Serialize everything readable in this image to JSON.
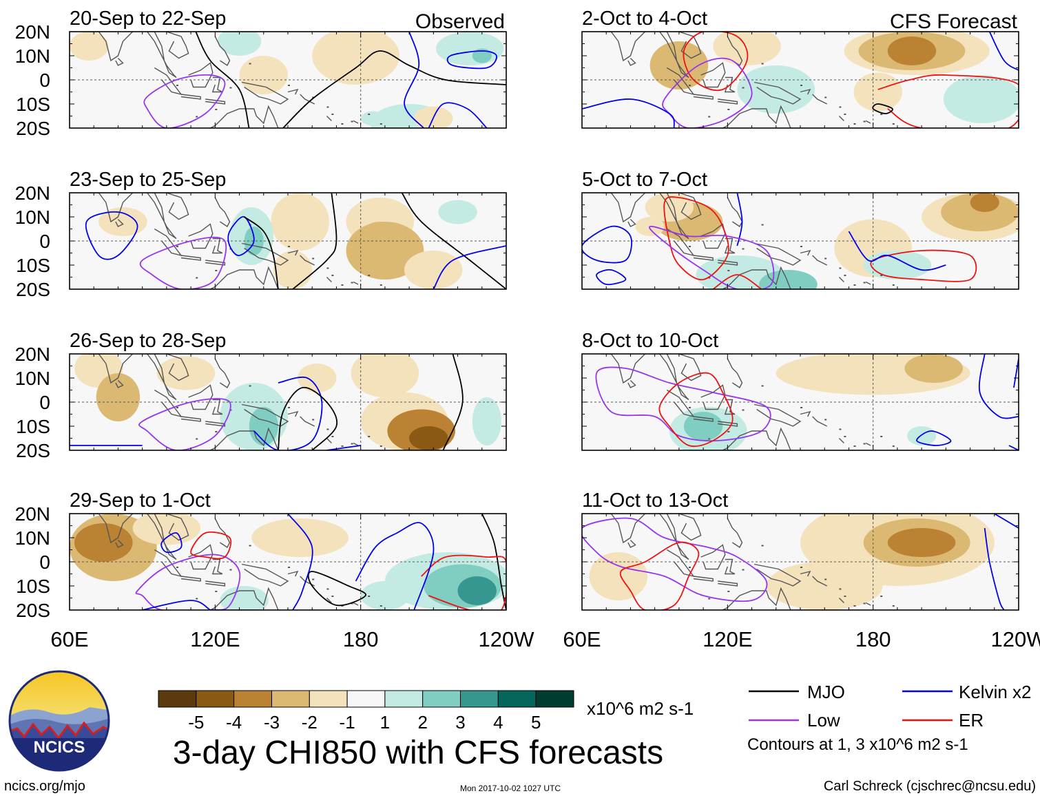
{
  "title": "3-day CHI850 with CFS forecasts",
  "labels": {
    "observed": "Observed",
    "forecast": "CFS Forecast",
    "units": "x10^6 m2 s-1",
    "contour_note": "Contours at 1, 3 x10^6 m2 s-1",
    "site": "ncics.org/mjo",
    "timestamp": "Mon 2017-10-02 1027 UTC",
    "author": "Carl Schreck (cjschrec@ncsu.edu)",
    "logo_text": "NCICS"
  },
  "colors": {
    "mjo": "#000000",
    "kelvin": "#0000ee",
    "low": "#9933ee",
    "er": "#ee1111",
    "land": "#555555"
  },
  "chart_data": {
    "type": "heatmap",
    "variable": "CHI850",
    "lat_ticks": [
      "20N",
      "10N",
      "0",
      "10S",
      "20S"
    ],
    "lon_ticks": [
      "60E",
      "120E",
      "180",
      "120W"
    ],
    "lat_range": [
      -20,
      20
    ],
    "lon_range": [
      60,
      240
    ],
    "colorbar": {
      "ticks": [
        "-5",
        "-4",
        "-3",
        "-2",
        "-1",
        "1",
        "2",
        "3",
        "4",
        "5"
      ],
      "colors": [
        "#5c3a0e",
        "#8a5a14",
        "#bc8234",
        "#dbb972",
        "#f3e2bc",
        "#f7f7f7",
        "#c4ebe3",
        "#80cdc1",
        "#35978f",
        "#06665c",
        "#003c30"
      ]
    },
    "legend": [
      {
        "name": "MJO",
        "color": "#000000"
      },
      {
        "name": "Kelvin x2",
        "color": "#0000ee"
      },
      {
        "name": "Low",
        "color": "#9933ee"
      },
      {
        "name": "ER",
        "color": "#ee1111"
      }
    ],
    "panels": [
      {
        "period": "20-Sep to 22-Sep",
        "source": "observed"
      },
      {
        "period": "23-Sep to 25-Sep",
        "source": "observed"
      },
      {
        "period": "26-Sep to 28-Sep",
        "source": "observed"
      },
      {
        "period": "29-Sep to 1-Oct",
        "source": "observed"
      },
      {
        "period": "2-Oct to 4-Oct",
        "source": "forecast"
      },
      {
        "period": "5-Oct to 7-Oct",
        "source": "forecast"
      },
      {
        "period": "8-Oct to 10-Oct",
        "source": "forecast"
      },
      {
        "period": "11-Oct to 13-Oct",
        "source": "forecast"
      }
    ]
  }
}
